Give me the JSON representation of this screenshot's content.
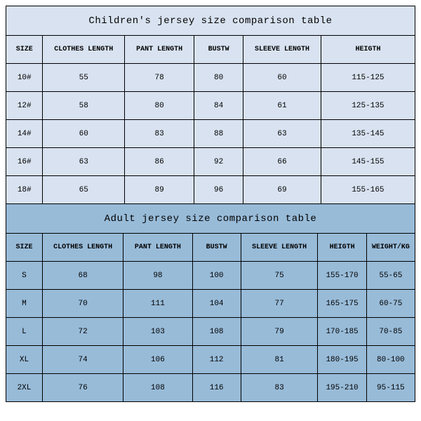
{
  "children": {
    "title": "Children's jersey size comparison table",
    "columns": [
      "SIZE",
      "CLOTHES LENGTH",
      "PANT LENGTH",
      "BUSTW",
      "SLEEVE LENGTH",
      "HEIGTH"
    ],
    "col_classes": [
      "col-size",
      "col-cl",
      "col-pl",
      "col-bw",
      "col-sl",
      "col-hg-c"
    ],
    "rows": [
      [
        "10#",
        "55",
        "78",
        "80",
        "60",
        "115-125"
      ],
      [
        "12#",
        "58",
        "80",
        "84",
        "61",
        "125-135"
      ],
      [
        "14#",
        "60",
        "83",
        "88",
        "63",
        "135-145"
      ],
      [
        "16#",
        "63",
        "86",
        "92",
        "66",
        "145-155"
      ],
      [
        "18#",
        "65",
        "89",
        "96",
        "69",
        "155-165"
      ]
    ]
  },
  "adult": {
    "title": "Adult jersey size comparison table",
    "columns": [
      "SIZE",
      "CLOTHES LENGTH",
      "PANT LENGTH",
      "BUSTW",
      "SLEEVE LENGTH",
      "HEIGTH",
      "WEIGHT/KG"
    ],
    "col_classes": [
      "col-size",
      "col-cl",
      "col-pl",
      "col-bw",
      "col-sl",
      "col-hg-a",
      "col-wt"
    ],
    "rows": [
      [
        "S",
        "68",
        "98",
        "100",
        "75",
        "155-170",
        "55-65"
      ],
      [
        "M",
        "70",
        "111",
        "104",
        "77",
        "165-175",
        "60-75"
      ],
      [
        "L",
        "72",
        "103",
        "108",
        "79",
        "170-185",
        "70-85"
      ],
      [
        "XL",
        "74",
        "106",
        "112",
        "81",
        "180-195",
        "80-100"
      ],
      [
        "2XL",
        "76",
        "108",
        "116",
        "83",
        "195-210",
        "95-115"
      ]
    ]
  },
  "style": {
    "children_bg": "#d8e2f0",
    "adult_bg": "#98bbd8",
    "border_color": "#000000",
    "title_fontsize": 14,
    "header_fontsize": 10,
    "cell_fontsize": 11,
    "font_family": "Courier New"
  }
}
